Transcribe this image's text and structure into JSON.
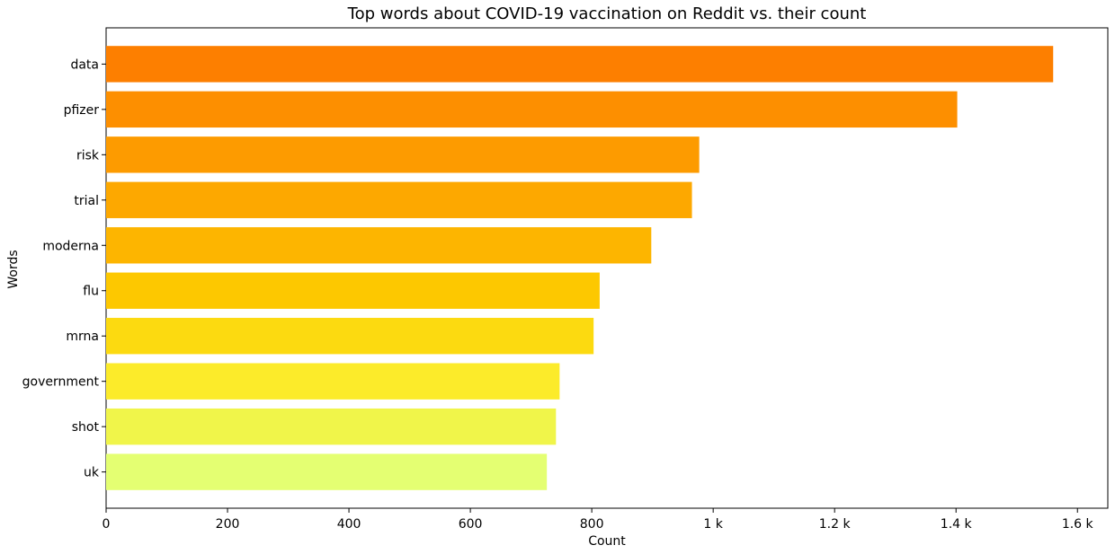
{
  "chart_data": {
    "type": "bar",
    "orientation": "horizontal",
    "title": "Top words about COVID-19 vaccination on Reddit vs. their count",
    "xlabel": "Count",
    "ylabel": "Words",
    "categories": [
      "data",
      "pfizer",
      "risk",
      "trial",
      "moderna",
      "flu",
      "mrna",
      "government",
      "shot",
      "uk"
    ],
    "values": [
      1560,
      1402,
      977,
      965,
      898,
      813,
      803,
      747,
      741,
      726
    ],
    "colors": [
      "#fd7f00",
      "#fd8f00",
      "#fd9b00",
      "#fda800",
      "#fdb500",
      "#fdc800",
      "#fcda10",
      "#fceb2a",
      "#f0f54a",
      "#e4ff72"
    ],
    "xlim": [
      0,
      1650
    ],
    "xticks": [
      0,
      200,
      400,
      600,
      800,
      1000,
      1200,
      1400,
      1600
    ],
    "xtick_labels": [
      "0",
      "200",
      "400",
      "600",
      "800",
      "1 k",
      "1.2 k",
      "1.4 k",
      "1.6 k"
    ],
    "grid": false,
    "legend": "none"
  }
}
